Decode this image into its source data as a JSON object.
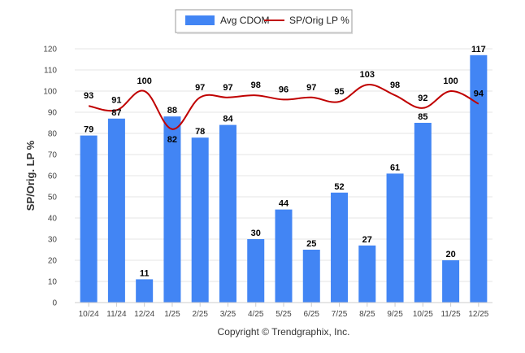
{
  "chart_data": {
    "type": "bar",
    "title": "",
    "xlabel": "",
    "ylabel": "SP/Orig. LP %",
    "ylim": [
      0,
      120
    ],
    "yticks": [
      0,
      10,
      20,
      30,
      40,
      50,
      60,
      70,
      80,
      90,
      100,
      110,
      120
    ],
    "grid": true,
    "legend_position": "top-center",
    "categories": [
      "10/24",
      "11/24",
      "12/24",
      "1/25",
      "2/25",
      "3/25",
      "4/25",
      "5/25",
      "6/25",
      "7/25",
      "8/25",
      "9/25",
      "10/25",
      "11/25",
      "12/25"
    ],
    "series": [
      {
        "name": "Avg CDOM",
        "kind": "bar",
        "color": "#4285f4",
        "values": [
          79,
          87,
          11,
          88,
          78,
          84,
          30,
          44,
          25,
          52,
          27,
          61,
          85,
          20,
          117
        ]
      },
      {
        "name": "SP/Orig LP %",
        "kind": "line",
        "color": "#c00000",
        "values": [
          93,
          91,
          100,
          82,
          97,
          97,
          98,
          96,
          97,
          95,
          103,
          98,
          92,
          100,
          94
        ]
      }
    ],
    "footer": "Copyright © Trendgraphix, Inc."
  }
}
